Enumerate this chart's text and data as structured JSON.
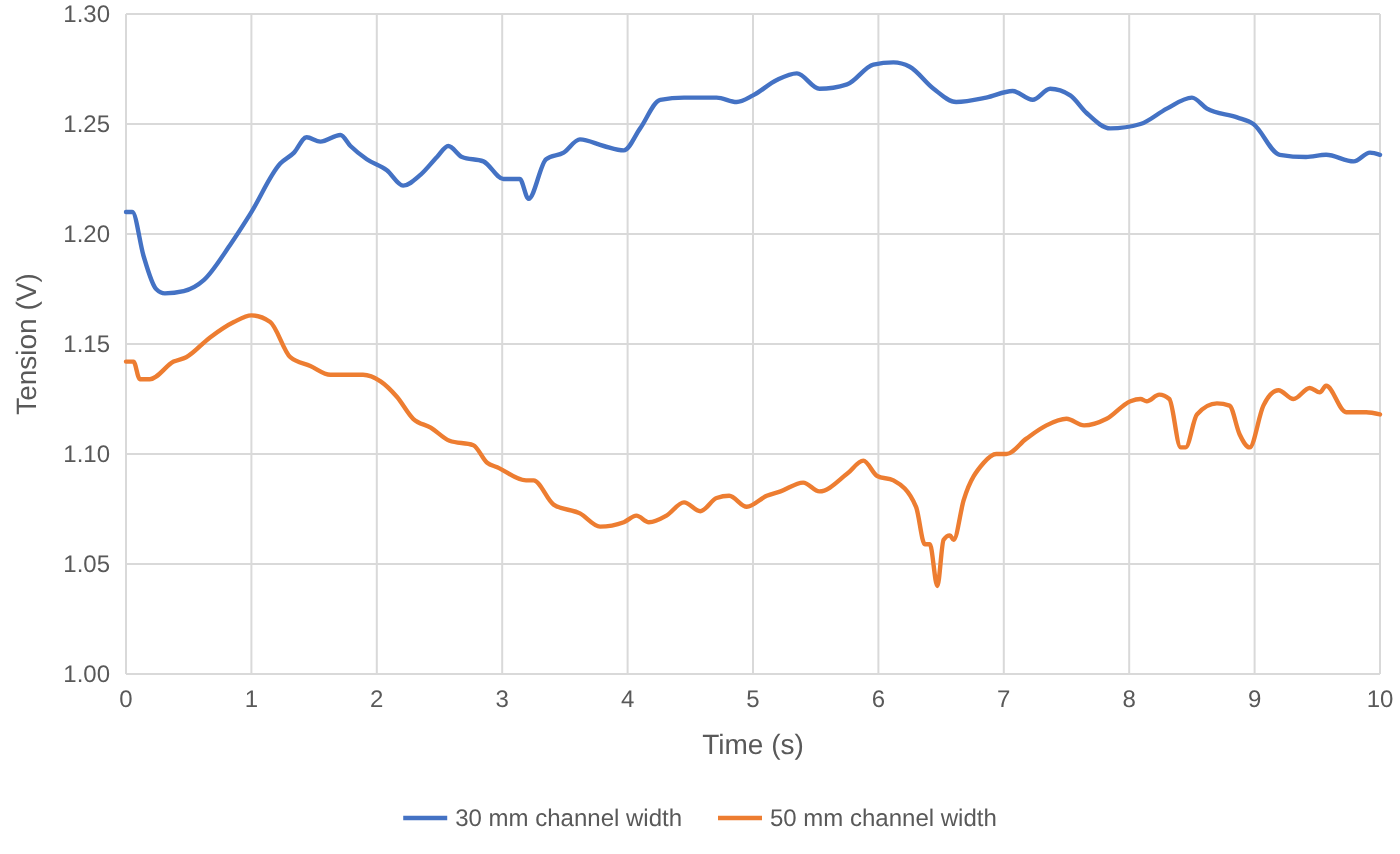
{
  "chart_data": {
    "type": "line",
    "xlabel": "Time (s)",
    "ylabel": "Tension (V)",
    "xlim": [
      0,
      10
    ],
    "xticks": [
      0,
      1,
      2,
      3,
      4,
      5,
      6,
      7,
      8,
      9,
      10
    ],
    "ylim": [
      1.0,
      1.3
    ],
    "yticks": [
      {
        "value": 1.0,
        "label": "1.00"
      },
      {
        "value": 1.05,
        "label": "1.05"
      },
      {
        "value": 1.1,
        "label": "1.10"
      },
      {
        "value": 1.15,
        "label": "1.15"
      },
      {
        "value": 1.2,
        "label": "1.20"
      },
      {
        "value": 1.25,
        "label": "1.25"
      },
      {
        "value": 1.3,
        "label": "1.30"
      }
    ],
    "grid": true,
    "legend": "bottom",
    "marker": "none",
    "line_style": "solid",
    "series": [
      {
        "name": "30 mm channel width",
        "color": "#4472c4",
        "x": [
          0,
          0.05,
          0.14,
          0.24,
          0.31,
          0.46,
          0.62,
          0.83,
          0.99,
          1.23,
          1.34,
          1.44,
          1.55,
          1.71,
          1.79,
          1.92,
          2.08,
          2.21,
          2.35,
          2.48,
          2.57,
          2.68,
          2.85,
          3.01,
          3.14,
          3.21,
          3.35,
          3.49,
          3.62,
          3.81,
          3.97,
          4.1,
          4.26,
          4.45,
          4.71,
          4.87,
          5.0,
          5.19,
          5.35,
          5.53,
          5.75,
          5.96,
          6.12,
          6.25,
          6.44,
          6.62,
          6.86,
          7.07,
          7.23,
          7.37,
          7.53,
          7.66,
          7.85,
          8.09,
          8.3,
          8.5,
          8.62,
          8.86,
          8.99,
          9.2,
          9.41,
          9.57,
          9.79,
          9.92,
          10
        ],
        "values": [
          1.21,
          1.21,
          1.19,
          1.175,
          1.173,
          1.174,
          1.179,
          1.195,
          1.209,
          1.232,
          1.237,
          1.244,
          1.242,
          1.245,
          1.24,
          1.234,
          1.229,
          1.222,
          1.227,
          1.235,
          1.24,
          1.235,
          1.233,
          1.225,
          1.225,
          1.216,
          1.234,
          1.237,
          1.243,
          1.24,
          1.238,
          1.248,
          1.261,
          1.262,
          1.262,
          1.26,
          1.263,
          1.27,
          1.273,
          1.266,
          1.268,
          1.277,
          1.278,
          1.276,
          1.266,
          1.26,
          1.262,
          1.265,
          1.261,
          1.266,
          1.263,
          1.255,
          1.248,
          1.25,
          1.257,
          1.262,
          1.257,
          1.253,
          1.25,
          1.236,
          1.235,
          1.236,
          1.233,
          1.237,
          1.236
        ]
      },
      {
        "name": "50 mm channel width",
        "color": "#ed7d31",
        "x": [
          0,
          0.06,
          0.11,
          0.19,
          0.38,
          0.48,
          0.67,
          0.86,
          1.0,
          1.15,
          1.31,
          1.47,
          1.63,
          1.89,
          2.03,
          2.16,
          2.29,
          2.43,
          2.58,
          2.77,
          2.88,
          2.96,
          3.19,
          3.25,
          3.41,
          3.62,
          3.78,
          3.97,
          4.07,
          4.17,
          4.31,
          4.45,
          4.58,
          4.71,
          4.81,
          4.95,
          5.11,
          5.22,
          5.4,
          5.53,
          5.75,
          5.88,
          5.99,
          6.12,
          6.3,
          6.37,
          6.41,
          6.47,
          6.52,
          6.57,
          6.6,
          6.68,
          6.84,
          6.94,
          7.02,
          7.18,
          7.34,
          7.5,
          7.64,
          7.82,
          8.01,
          8.09,
          8.14,
          8.24,
          8.32,
          8.41,
          8.45,
          8.54,
          8.7,
          8.8,
          8.88,
          8.96,
          9.07,
          9.19,
          9.31,
          9.44,
          9.52,
          9.57,
          9.73,
          9.89,
          10
        ],
        "values": [
          1.142,
          1.142,
          1.134,
          1.134,
          1.142,
          1.144,
          1.153,
          1.16,
          1.163,
          1.16,
          1.144,
          1.14,
          1.136,
          1.136,
          1.133,
          1.126,
          1.116,
          1.112,
          1.106,
          1.104,
          1.096,
          1.094,
          1.088,
          1.088,
          1.077,
          1.073,
          1.067,
          1.069,
          1.072,
          1.069,
          1.072,
          1.078,
          1.074,
          1.08,
          1.081,
          1.076,
          1.081,
          1.083,
          1.087,
          1.083,
          1.091,
          1.097,
          1.09,
          1.088,
          1.076,
          1.059,
          1.059,
          1.04,
          1.061,
          1.063,
          1.061,
          1.079,
          1.096,
          1.1,
          1.1,
          1.107,
          1.113,
          1.116,
          1.113,
          1.116,
          1.124,
          1.125,
          1.124,
          1.127,
          1.125,
          1.103,
          1.103,
          1.118,
          1.123,
          1.122,
          1.109,
          1.103,
          1.122,
          1.129,
          1.125,
          1.13,
          1.128,
          1.131,
          1.119,
          1.119,
          1.118
        ]
      }
    ]
  }
}
